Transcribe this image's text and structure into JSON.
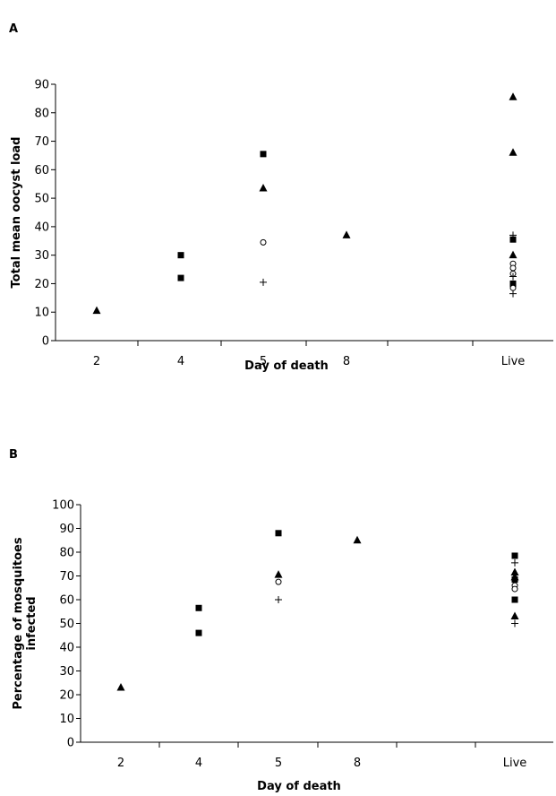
{
  "chart_data": [
    {
      "panel_label": "A",
      "type": "scatter",
      "xlabel": "Day of death",
      "ylabel": "Total mean oocyst load",
      "categories": [
        "2",
        "4",
        "5",
        "8",
        "Live"
      ],
      "ylim": [
        0,
        90
      ],
      "yticks": [
        0,
        10,
        20,
        30,
        40,
        50,
        60,
        70,
        80,
        90
      ],
      "grid": false,
      "legend": "none",
      "series": [
        {
          "marker": "triangle",
          "points": [
            {
              "x": "2",
              "y": 10.5
            },
            {
              "x": "5",
              "y": 53.5
            },
            {
              "x": "8",
              "y": 37
            },
            {
              "x": "Live",
              "y": 85.5
            },
            {
              "x": "Live",
              "y": 66
            },
            {
              "x": "Live",
              "y": 30
            }
          ]
        },
        {
          "marker": "square",
          "points": [
            {
              "x": "4",
              "y": 30
            },
            {
              "x": "4",
              "y": 22
            },
            {
              "x": "5",
              "y": 65.5
            },
            {
              "x": "Live",
              "y": 35.5
            },
            {
              "x": "Live",
              "y": 20
            }
          ]
        },
        {
          "marker": "circle",
          "points": [
            {
              "x": "5",
              "y": 34.5
            },
            {
              "x": "Live",
              "y": 27
            },
            {
              "x": "Live",
              "y": 25.5
            },
            {
              "x": "Live",
              "y": 23.5
            },
            {
              "x": "Live",
              "y": 18.5
            }
          ]
        },
        {
          "marker": "plus",
          "points": [
            {
              "x": "5",
              "y": 20.5
            },
            {
              "x": "Live",
              "y": 37
            },
            {
              "x": "Live",
              "y": 22.5
            },
            {
              "x": "Live",
              "y": 16.5
            }
          ]
        }
      ]
    },
    {
      "panel_label": "B",
      "type": "scatter",
      "xlabel": "Day of death",
      "ylabel": "Percentage of mosquitoes infected",
      "categories": [
        "2",
        "4",
        "5",
        "8",
        "Live"
      ],
      "ylim": [
        0,
        100
      ],
      "yticks": [
        0,
        10,
        20,
        30,
        40,
        50,
        60,
        70,
        80,
        90,
        100
      ],
      "grid": false,
      "legend": "none",
      "series": [
        {
          "marker": "triangle",
          "points": [
            {
              "x": "2",
              "y": 23
            },
            {
              "x": "5",
              "y": 70.5
            },
            {
              "x": "8",
              "y": 85
            },
            {
              "x": "Live",
              "y": 71.5
            },
            {
              "x": "Live",
              "y": 69.5
            },
            {
              "x": "Live",
              "y": 53
            }
          ]
        },
        {
          "marker": "square",
          "points": [
            {
              "x": "4",
              "y": 56.5
            },
            {
              "x": "4",
              "y": 46
            },
            {
              "x": "5",
              "y": 88
            },
            {
              "x": "Live",
              "y": 78.5
            },
            {
              "x": "Live",
              "y": 68.5
            },
            {
              "x": "Live",
              "y": 60
            }
          ]
        },
        {
          "marker": "circle",
          "points": [
            {
              "x": "5",
              "y": 67.5
            },
            {
              "x": "Live",
              "y": 66
            },
            {
              "x": "Live",
              "y": 64.5
            }
          ]
        },
        {
          "marker": "plus",
          "points": [
            {
              "x": "5",
              "y": 60
            },
            {
              "x": "Live",
              "y": 75.5
            },
            {
              "x": "Live",
              "y": 50
            }
          ]
        }
      ]
    }
  ]
}
